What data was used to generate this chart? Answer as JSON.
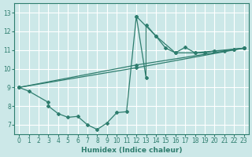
{
  "xlabel": "Humidex (Indice chaleur)",
  "xlim": [
    -0.5,
    23.5
  ],
  "ylim": [
    6.5,
    13.5
  ],
  "xticks": [
    0,
    1,
    2,
    3,
    4,
    5,
    6,
    7,
    8,
    9,
    10,
    11,
    12,
    13,
    14,
    15,
    16,
    17,
    18,
    19,
    20,
    21,
    22,
    23
  ],
  "yticks": [
    7,
    8,
    9,
    10,
    11,
    12,
    13
  ],
  "background_color": "#cce8e8",
  "grid_color": "#ffffff",
  "line_color": "#2e7d6e",
  "segments": [
    {
      "x": [
        0,
        1,
        3,
        3,
        4,
        5,
        6,
        7,
        8,
        9,
        10,
        11,
        12,
        13,
        13,
        14,
        15,
        16,
        17,
        18,
        19,
        20,
        21,
        22,
        23
      ],
      "y": [
        9.0,
        8.8,
        8.2,
        8.0,
        7.6,
        7.4,
        7.45,
        7.0,
        6.75,
        7.1,
        7.65,
        7.7,
        12.8,
        9.5,
        12.35,
        11.75,
        11.1,
        10.85,
        11.15,
        10.85,
        10.85,
        10.95,
        10.95,
        11.05,
        11.1
      ]
    },
    {
      "x": [
        0,
        12,
        23
      ],
      "y": [
        9.0,
        10.05,
        11.1
      ]
    },
    {
      "x": [
        0,
        12,
        23
      ],
      "y": [
        9.0,
        10.2,
        11.1
      ]
    },
    {
      "x": [
        12,
        14,
        16,
        18,
        20,
        22,
        23
      ],
      "y": [
        12.8,
        11.75,
        10.85,
        10.85,
        10.95,
        11.05,
        11.1
      ]
    }
  ]
}
